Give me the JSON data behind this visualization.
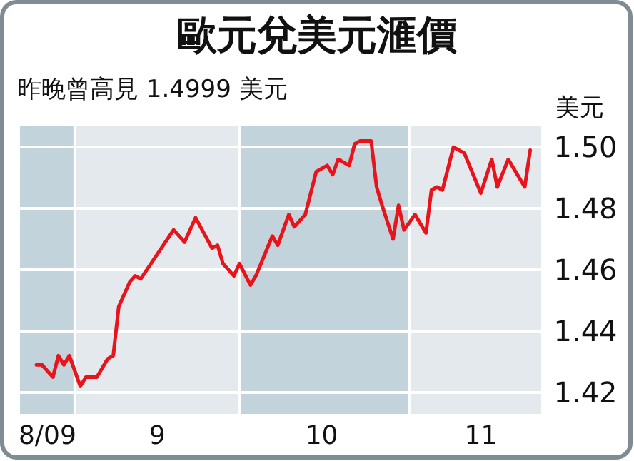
{
  "chart_data": {
    "type": "line",
    "title": "歐元兌美元滙價",
    "subtitle": "昨晚曾高見 1.4999 美元",
    "ylabel": "美元",
    "x": [
      "2009-08-25",
      "2009-08-26",
      "2009-08-28",
      "2009-08-29",
      "2009-08-30",
      "2009-08-31",
      "2009-09-02",
      "2009-09-03",
      "2009-09-05",
      "2009-09-07",
      "2009-09-08",
      "2009-09-09",
      "2009-09-11",
      "2009-09-12",
      "2009-09-13",
      "2009-09-19",
      "2009-09-21",
      "2009-09-23",
      "2009-09-26",
      "2009-09-27",
      "2009-09-28",
      "2009-09-30",
      "2009-10-01",
      "2009-10-03",
      "2009-10-04",
      "2009-10-07",
      "2009-10-08",
      "2009-10-10",
      "2009-10-11",
      "2009-10-13",
      "2009-10-15",
      "2009-10-17",
      "2009-10-18",
      "2009-10-19",
      "2009-10-21",
      "2009-10-22",
      "2009-10-23",
      "2009-10-25",
      "2009-10-26",
      "2009-10-27",
      "2009-10-29",
      "2009-10-30",
      "2009-10-31",
      "2009-11-02",
      "2009-11-04",
      "2009-11-05",
      "2009-11-06",
      "2009-11-07",
      "2009-11-09",
      "2009-11-11",
      "2009-11-14",
      "2009-11-16",
      "2009-11-17",
      "2009-11-19",
      "2009-11-22",
      "2009-11-23"
    ],
    "series": [
      {
        "color": "#e8141c",
        "values": [
          1.429,
          1.429,
          1.425,
          1.432,
          1.429,
          1.432,
          1.422,
          1.425,
          1.425,
          1.431,
          1.432,
          1.448,
          1.456,
          1.458,
          1.457,
          1.473,
          1.469,
          1.477,
          1.467,
          1.468,
          1.462,
          1.458,
          1.462,
          1.455,
          1.458,
          1.471,
          1.468,
          1.478,
          1.474,
          1.478,
          1.492,
          1.494,
          1.491,
          1.496,
          1.494,
          1.501,
          1.502,
          1.502,
          1.487,
          1.481,
          1.47,
          1.481,
          1.473,
          1.478,
          1.472,
          1.486,
          1.487,
          1.486,
          1.5,
          1.498,
          1.485,
          1.496,
          1.487,
          1.496,
          1.487,
          1.499
        ]
      }
    ],
    "xlim": [
      "2009-08-22",
      "2009-11-25"
    ],
    "xticks": [
      {
        "value": "2009-08-27",
        "label": "8/09"
      },
      {
        "value": "2009-09-16",
        "label": "9"
      },
      {
        "value": "2009-10-16",
        "label": "10"
      },
      {
        "value": "2009-11-14",
        "label": "11"
      }
    ],
    "ylim": [
      1.413,
      1.507
    ],
    "yticks": [
      1.42,
      1.44,
      1.46,
      1.48,
      {
        "value": 1.5,
        "label": "1.50"
      }
    ],
    "bands": [
      {
        "axis": "x",
        "from": "2009-08-22",
        "to": "2009-09-01",
        "color": "#c3d3db"
      },
      {
        "axis": "x",
        "from": "2009-10-01",
        "to": "2009-11-01",
        "color": "#c3d3db"
      }
    ],
    "grid": "y",
    "marker": "none",
    "line_style": "solid"
  }
}
